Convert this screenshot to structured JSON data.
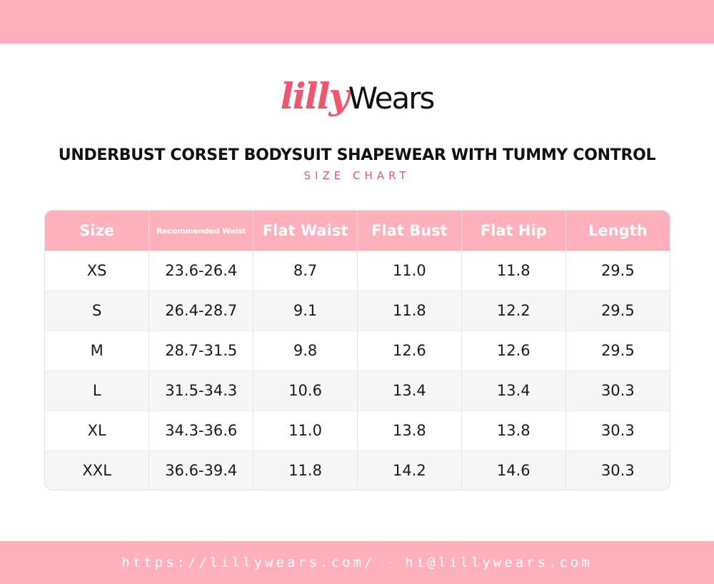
{
  "brand": {
    "script": "lilly",
    "sans": "Wears"
  },
  "title": "UNDERBUST CORSET BODYSUIT SHAPEWEAR WITH TUMMY CONTROL",
  "subtitle": "SIZE CHART",
  "table": {
    "headers": [
      "Size",
      "Recommended Waist",
      "Flat Waist",
      "Flat Bust",
      "Flat Hip",
      "Length"
    ],
    "rows": [
      [
        "XS",
        "23.6-26.4",
        "8.7",
        "11.0",
        "11.8",
        "29.5"
      ],
      [
        "S",
        "26.4-28.7",
        "9.1",
        "11.8",
        "12.2",
        "29.5"
      ],
      [
        "M",
        "28.7-31.5",
        "9.8",
        "12.6",
        "12.6",
        "29.5"
      ],
      [
        "L",
        "31.5-34.3",
        "10.6",
        "13.4",
        "13.4",
        "30.3"
      ],
      [
        "XL",
        "34.3-36.6",
        "11.0",
        "13.8",
        "13.8",
        "30.3"
      ],
      [
        "XXL",
        "36.6-39.4",
        "11.8",
        "14.2",
        "14.6",
        "30.3"
      ]
    ]
  },
  "footer": {
    "url": "https://lillywears.com/",
    "separator": "·",
    "email": "hi@lillywears.com"
  },
  "colors": {
    "accent": "#f0566e",
    "band": "#ffb0bc",
    "header": "#ffb0bc"
  }
}
